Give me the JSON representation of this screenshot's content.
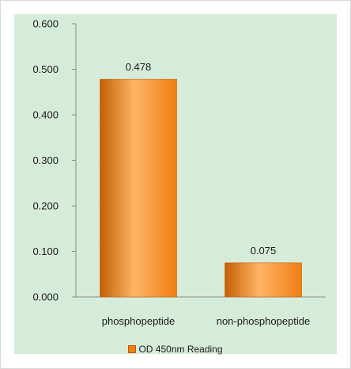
{
  "chart_data": {
    "type": "bar",
    "categories": [
      "phosphopeptide",
      "non-phosphopeptide"
    ],
    "series": [
      {
        "name": "OD 450nm Reading",
        "values": [
          0.478,
          0.075
        ]
      }
    ],
    "data_labels": [
      "0.478",
      "0.075"
    ],
    "ylim": [
      0,
      0.6
    ],
    "yticks": [
      0,
      0.1,
      0.2,
      0.3,
      0.4,
      0.5,
      0.6
    ],
    "ytick_labels": [
      "0.000",
      "0.100",
      "0.200",
      "0.300",
      "0.400",
      "0.500",
      "0.600"
    ],
    "title": "",
    "xlabel": "",
    "ylabel": "",
    "grid": false,
    "legend_position": "bottom",
    "colors": {
      "bar": "#f07e12",
      "bar_light": "#ffb566",
      "bar_dark": "#c45f05",
      "background": "#d6ecda"
    }
  },
  "legend": {
    "label": "OD 450nm Reading"
  }
}
